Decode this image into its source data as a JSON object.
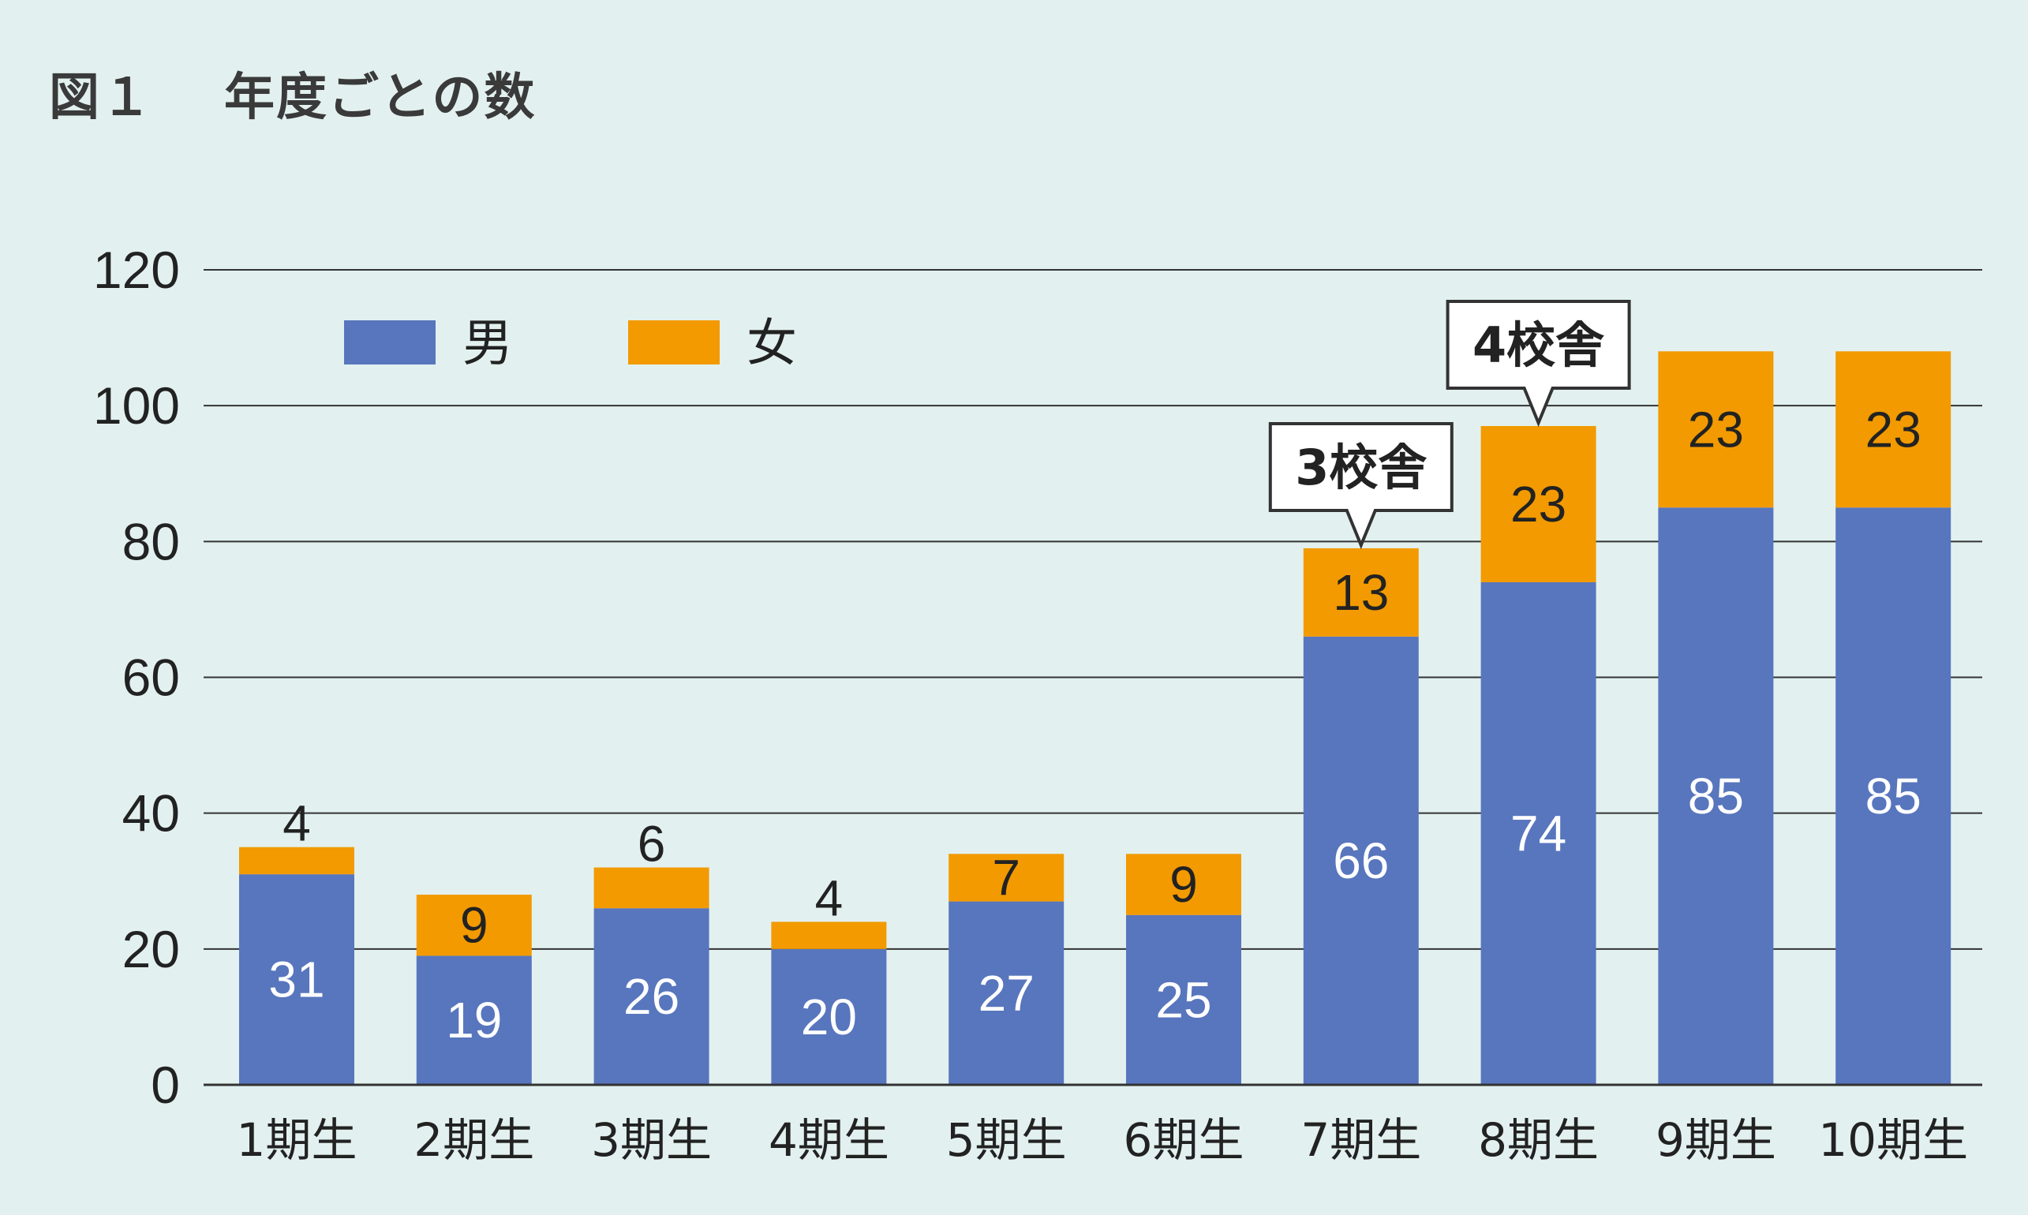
{
  "figure": {
    "number": "図１",
    "title": "年度ごとの数"
  },
  "chart_data": {
    "type": "bar",
    "stacked": true,
    "title": "年度ごとの数",
    "categories": [
      "1期生",
      "2期生",
      "3期生",
      "4期生",
      "5期生",
      "6期生",
      "7期生",
      "8期生",
      "9期生",
      "10期生"
    ],
    "series": [
      {
        "name": "男",
        "color": "#5876bd",
        "values": [
          31,
          19,
          26,
          20,
          27,
          25,
          66,
          74,
          85,
          85
        ]
      },
      {
        "name": "女",
        "color": "#f29a00",
        "values": [
          4,
          9,
          6,
          4,
          7,
          9,
          13,
          23,
          23,
          23
        ]
      }
    ],
    "ylim": [
      0,
      120
    ],
    "yticks": [
      0,
      20,
      40,
      60,
      80,
      100,
      120
    ],
    "grid": true,
    "legend_position": "top-left",
    "annotations": [
      {
        "category": "7期生",
        "text": "3校舎"
      },
      {
        "category": "8期生",
        "text": "4校舎"
      }
    ]
  }
}
